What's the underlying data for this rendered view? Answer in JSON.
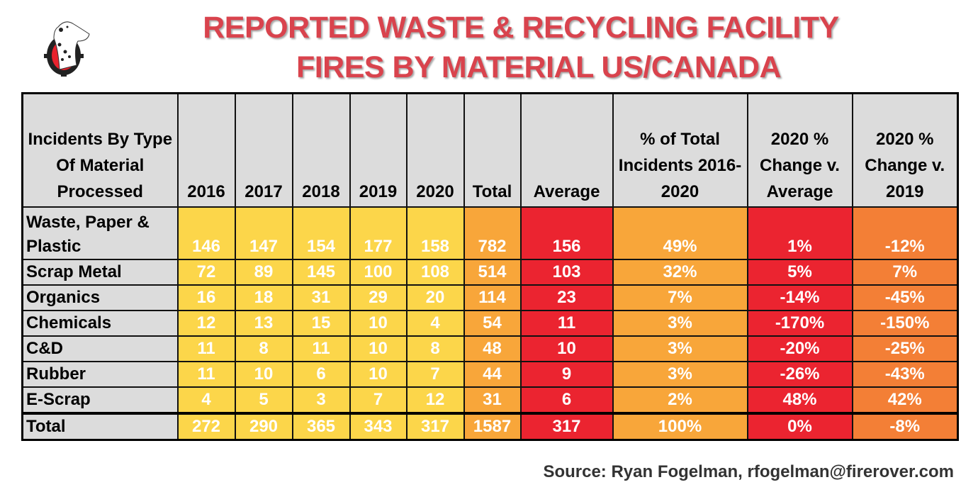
{
  "title_line1": "REPORTED WASTE & RECYCLING FACILITY",
  "title_line2": "FIRES BY MATERIAL US/CANADA",
  "logo": "dalmatian-crosshair-logo",
  "source": "Source: Ryan Fogelman, rfogelman@firerover.com",
  "colors": {
    "title": "#D9434D",
    "header": "#DCDCDC",
    "years": "#FCD64A",
    "total": "#F8A63A",
    "average": "#EB2430",
    "pct_total": "#F8A63A",
    "chg_avg": "#EB2430",
    "chg_2019": "#F37F36"
  },
  "chart_data": {
    "type": "table",
    "columns": [
      "Incidents By Type Of Material Processed",
      "2016",
      "2017",
      "2018",
      "2019",
      "2020",
      "Total",
      "Average",
      "% of Total Incidents 2016-2020",
      "2020 % Change v. Average",
      "2020 % Change v. 2019"
    ],
    "rows": [
      [
        "Waste, Paper & Plastic",
        "146",
        "147",
        "154",
        "177",
        "158",
        "782",
        "156",
        "49%",
        "1%",
        "-12%"
      ],
      [
        "Scrap Metal",
        "72",
        "89",
        "145",
        "100",
        "108",
        "514",
        "103",
        "32%",
        "5%",
        "7%"
      ],
      [
        "Organics",
        "16",
        "18",
        "31",
        "29",
        "20",
        "114",
        "23",
        "7%",
        "-14%",
        "-45%"
      ],
      [
        "Chemicals",
        "12",
        "13",
        "15",
        "10",
        "4",
        "54",
        "11",
        "3%",
        "-170%",
        "-150%"
      ],
      [
        "C&D",
        "11",
        "8",
        "11",
        "10",
        "8",
        "48",
        "10",
        "3%",
        "-20%",
        "-25%"
      ],
      [
        "Rubber",
        "11",
        "10",
        "6",
        "10",
        "7",
        "44",
        "9",
        "3%",
        "-26%",
        "-43%"
      ],
      [
        "E-Scrap",
        "4",
        "5",
        "3",
        "7",
        "12",
        "31",
        "6",
        "2%",
        "48%",
        "42%"
      ],
      [
        "Total",
        "272",
        "290",
        "365",
        "343",
        "317",
        "1587",
        "317",
        "100%",
        "0%",
        "-8%"
      ]
    ]
  }
}
